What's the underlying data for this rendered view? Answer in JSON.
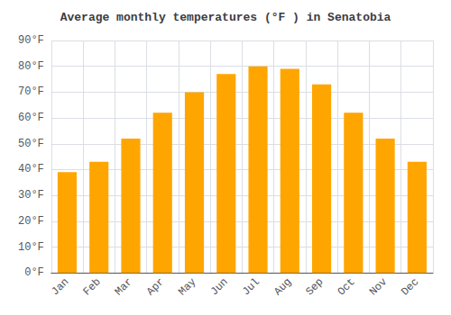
{
  "chart_data": {
    "type": "bar",
    "title": "Average monthly temperatures (°F ) in Senatobia",
    "categories": [
      "Jan",
      "Feb",
      "Mar",
      "Apr",
      "May",
      "Jun",
      "Jul",
      "Aug",
      "Sep",
      "Oct",
      "Nov",
      "Dec"
    ],
    "values": [
      39,
      43,
      52,
      62,
      70,
      77,
      80,
      79,
      73,
      62,
      52,
      43
    ],
    "color": "#FFA500",
    "ylim": [
      0,
      90
    ],
    "yticks": [
      {
        "value": 0,
        "label": "0°F"
      },
      {
        "value": 10,
        "label": "10°F"
      },
      {
        "value": 20,
        "label": "20°F"
      },
      {
        "value": 30,
        "label": "30°F"
      },
      {
        "value": 40,
        "label": "40°F"
      },
      {
        "value": 50,
        "label": "50°F"
      },
      {
        "value": 60,
        "label": "60°F"
      },
      {
        "value": 70,
        "label": "70°F"
      },
      {
        "value": 80,
        "label": "80°F"
      },
      {
        "value": 90,
        "label": "90°F"
      }
    ],
    "grid": true
  }
}
